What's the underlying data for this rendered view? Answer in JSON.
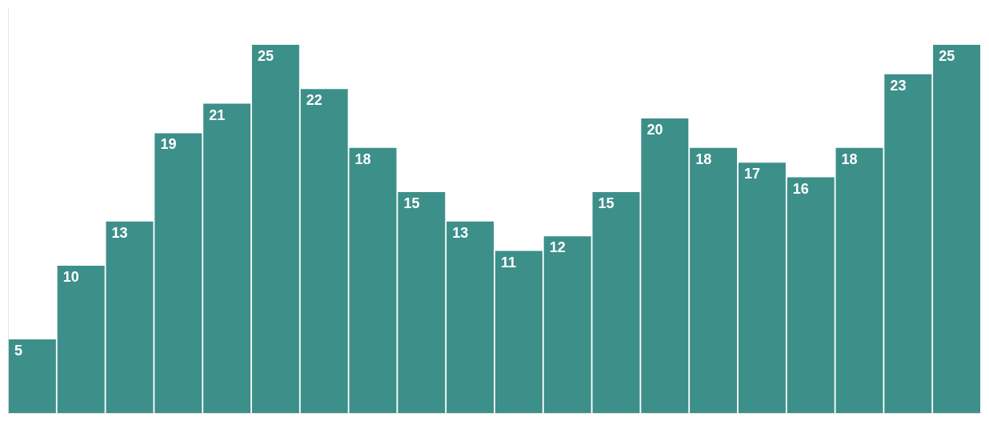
{
  "chart_data": {
    "type": "bar",
    "categories": [
      null,
      null,
      null,
      null,
      null,
      null,
      null,
      null,
      null,
      null,
      null,
      null,
      null,
      null,
      null,
      null,
      null,
      null,
      null,
      null
    ],
    "values": [
      5,
      10,
      13,
      19,
      21,
      25,
      22,
      18,
      15,
      13,
      11,
      12,
      15,
      20,
      18,
      17,
      16,
      18,
      23,
      25
    ],
    "color": "#3d8f8a",
    "ylim": [
      0,
      27.5
    ],
    "grid": false,
    "data_labels": true,
    "tick_labels": false
  }
}
